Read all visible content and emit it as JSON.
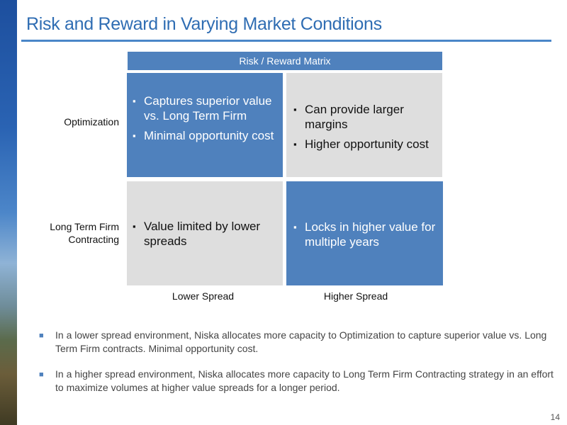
{
  "title": "Risk and Reward in Varying Market Conditions",
  "matrix": {
    "header": "Risk / Reward Matrix",
    "row_labels": [
      "Optimization",
      "Long Term Firm Contracting"
    ],
    "col_labels": [
      "Lower Spread",
      "Higher Spread"
    ],
    "cells": {
      "opt_lower": [
        "Captures superior value vs. Long Term Firm",
        "Minimal opportunity cost"
      ],
      "opt_higher": [
        "Can provide larger margins",
        "Higher opportunity cost"
      ],
      "ltf_lower": [
        "Value limited by lower spreads"
      ],
      "ltf_higher": [
        "Locks in higher value for multiple years"
      ]
    }
  },
  "notes": [
    "In a lower spread environment, Niska allocates more capacity to Optimization to capture superior value vs. Long Term Firm contracts.  Minimal opportunity cost.",
    "In a higher spread environment, Niska allocates more capacity to Long Term Firm Contracting strategy in an effort to maximize volumes at higher value spreads for a longer period."
  ],
  "page_number": "14",
  "colors": {
    "accent": "#4f81bd",
    "title": "#2f6db3",
    "gray_cell": "#dedede"
  }
}
